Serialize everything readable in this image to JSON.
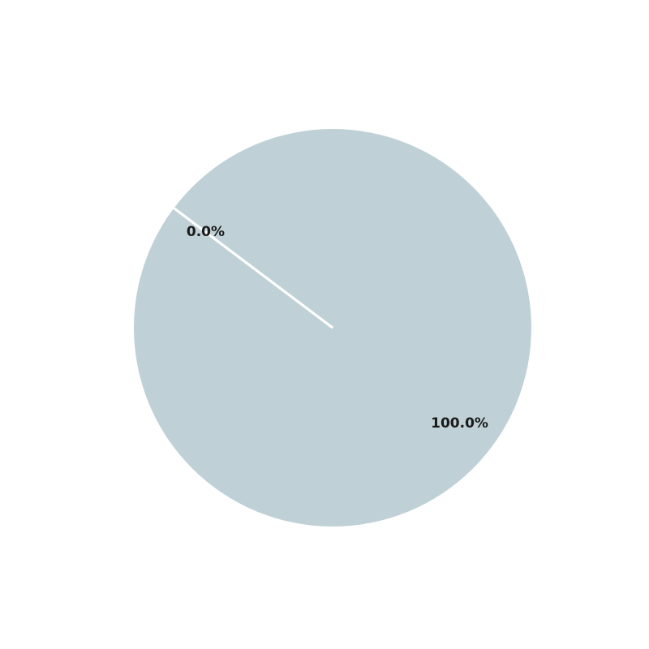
{
  "chart_data": {
    "type": "pie",
    "slices": [
      {
        "value": 0.0,
        "label_text": "0.0%",
        "color": "#bfd1d7"
      },
      {
        "value": 100.0,
        "label_text": "100.0%",
        "color": "#bfd1d7"
      }
    ],
    "slice_separator_color": "#ffffff",
    "label_color": "#1a1a1a",
    "legend": "none",
    "title": ""
  }
}
